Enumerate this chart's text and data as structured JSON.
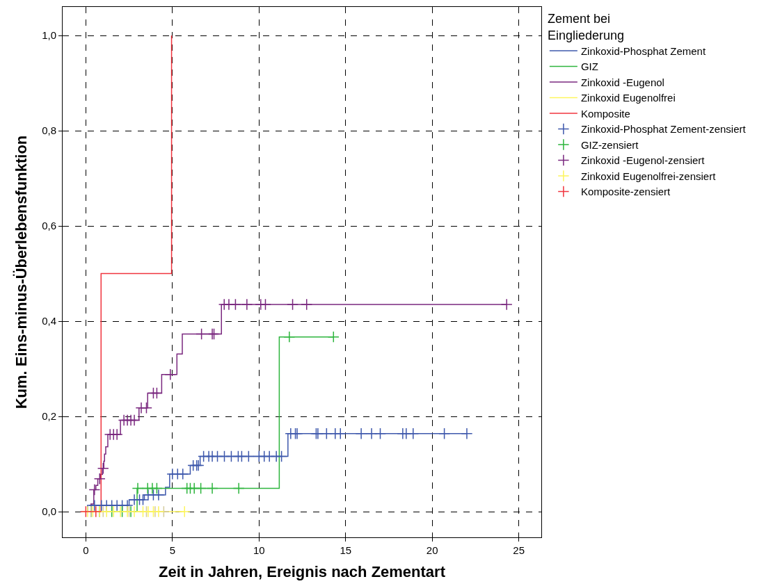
{
  "chart_data": {
    "type": "step",
    "xlabel": "Zeit in Jahren, Ereignis nach Zementart",
    "ylabel": "Kum. Eins-minus-Überlebensfunktion",
    "legend_title": "Zement bei Eingliederung",
    "legend": "right",
    "grid": true,
    "line_style": "solid",
    "xlim": [
      -1.34,
      26.3
    ],
    "xticks": [
      0,
      5,
      10,
      15,
      20,
      25
    ],
    "ylim": [
      -0.054,
      1.06
    ],
    "yticks": [
      {
        "value": 0,
        "label": "0,0"
      },
      {
        "value": 0.2,
        "label": "0,2"
      },
      {
        "value": 0.4,
        "label": "0,4"
      },
      {
        "value": 0.6,
        "label": "0,6"
      },
      {
        "value": 0.8,
        "label": "0,8"
      },
      {
        "value": 1.0,
        "label": "1,0"
      }
    ],
    "series": [
      {
        "name": "Zinkoxid-Phosphat Zement",
        "color": "#3e58ac",
        "x": [
          0,
          0.1,
          2.5,
          3.38,
          4.6,
          4.84,
          6.03,
          6.6,
          11.67,
          22.0
        ],
        "values": [
          0,
          0.013,
          0.025,
          0.035,
          0.051,
          0.079,
          0.097,
          0.116,
          0.164,
          0.164
        ]
      },
      {
        "name": "GIZ",
        "color": "#2db53d",
        "x": [
          0,
          2.96,
          11.17,
          14.3
        ],
        "values": [
          0,
          0.049,
          0.367,
          0.367
        ]
      },
      {
        "name": "Zinkoxid -Eugenol",
        "color": "#7a287f",
        "x": [
          0,
          0.3,
          0.46,
          0.58,
          0.69,
          0.85,
          0.96,
          1.04,
          1.08,
          1.15,
          1.27,
          2.0,
          3.07,
          3.57,
          4.38,
          5.26,
          5.57,
          7.83,
          24.3
        ],
        "values": [
          0,
          0.016,
          0.046,
          0.055,
          0.069,
          0.078,
          0.091,
          0.106,
          0.121,
          0.136,
          0.162,
          0.192,
          0.218,
          0.249,
          0.288,
          0.331,
          0.373,
          0.435,
          0.435
        ]
      },
      {
        "name": "Zinkoxid Eugenolfrei",
        "color": "#fdf55d",
        "x": [
          0,
          5.7
        ],
        "values": [
          0,
          0
        ]
      },
      {
        "name": "Komposite",
        "color": "#f0343e",
        "x": [
          0,
          0.88,
          4.95
        ],
        "values": [
          0,
          0.5,
          1.0
        ]
      },
      {
        "name": "Zinkoxid-Phosphat Zement-zensiert",
        "type": "scatter",
        "marker": "cross",
        "color": "#3e58ac",
        "x": [
          0.5,
          0.9,
          1.2,
          1.5,
          1.8,
          2.1,
          2.4,
          2.8,
          3.1,
          3.3,
          3.6,
          3.9,
          4.2,
          5.0,
          5.3,
          5.6,
          6.2,
          6.4,
          6.5,
          6.8,
          7.1,
          7.3,
          7.6,
          8.0,
          8.4,
          8.8,
          9.0,
          9.4,
          10.0,
          10.3,
          10.6,
          11.0,
          11.3,
          11.83,
          12.1,
          12.2,
          13.3,
          13.4,
          13.9,
          14.4,
          14.7,
          15.9,
          16.5,
          17.0,
          18.3,
          18.5,
          18.9,
          20.7,
          22.0
        ],
        "values": [
          0.013,
          0.013,
          0.013,
          0.013,
          0.013,
          0.013,
          0.013,
          0.025,
          0.025,
          0.025,
          0.035,
          0.035,
          0.035,
          0.079,
          0.079,
          0.079,
          0.097,
          0.097,
          0.097,
          0.116,
          0.116,
          0.116,
          0.116,
          0.116,
          0.116,
          0.116,
          0.116,
          0.116,
          0.116,
          0.116,
          0.116,
          0.116,
          0.116,
          0.164,
          0.164,
          0.164,
          0.164,
          0.164,
          0.164,
          0.164,
          0.164,
          0.164,
          0.164,
          0.164,
          0.164,
          0.164,
          0.164,
          0.164,
          0.164
        ]
      },
      {
        "name": "GIZ-zensiert",
        "type": "scatter",
        "marker": "cross",
        "color": "#2db53d",
        "x": [
          0.3,
          0.8,
          1.5,
          2.1,
          2.6,
          3.0,
          3.57,
          3.84,
          4.1,
          5.84,
          6.03,
          6.26,
          6.64,
          7.3,
          8.83,
          11.75,
          14.3
        ],
        "values": [
          0,
          0,
          0,
          0,
          0,
          0.049,
          0.049,
          0.049,
          0.049,
          0.049,
          0.049,
          0.049,
          0.049,
          0.049,
          0.049,
          0.367,
          0.367
        ]
      },
      {
        "type": "scatter",
        "marker": "cross",
        "color": "#d4ca9c",
        "x": [
          0.3,
          1.0,
          2.5,
          3.5,
          4.0,
          4.5
        ],
        "values": [
          0,
          0,
          0,
          0,
          0,
          0
        ]
      },
      {
        "name": "Zinkoxid -Eugenol-zensiert",
        "type": "scatter",
        "marker": "cross",
        "color": "#7a287f",
        "x": [
          0.5,
          0.8,
          1.0,
          1.4,
          1.6,
          1.8,
          2.2,
          2.4,
          2.6,
          2.8,
          3.2,
          3.5,
          3.9,
          4.1,
          4.88,
          6.68,
          7.3,
          7.4,
          7.99,
          8.26,
          8.64,
          9.3,
          10.1,
          10.37,
          11.94,
          12.75,
          24.3
        ],
        "values": [
          0.046,
          0.069,
          0.091,
          0.162,
          0.162,
          0.162,
          0.192,
          0.192,
          0.192,
          0.192,
          0.218,
          0.218,
          0.249,
          0.249,
          0.288,
          0.373,
          0.373,
          0.373,
          0.435,
          0.435,
          0.435,
          0.435,
          0.435,
          0.435,
          0.435,
          0.435,
          0.435
        ]
      },
      {
        "name": "Zinkoxid Eugenolfrei-zensiert",
        "type": "scatter",
        "marker": "cross",
        "color": "#fdf55d",
        "x": [
          0.1,
          0.4,
          0.8,
          1.2,
          1.6,
          2.0,
          2.4,
          2.8,
          3.3,
          3.6,
          3.9,
          4.2,
          5.7
        ],
        "values": [
          0,
          0,
          0,
          0,
          0,
          0,
          0,
          0,
          0,
          0,
          0,
          0,
          0
        ]
      },
      {
        "name": "Komposite-zensiert",
        "type": "scatter",
        "marker": "cross",
        "color": "#f0343e",
        "x": [
          0.0,
          0.58
        ],
        "values": [
          0,
          0
        ]
      }
    ]
  }
}
